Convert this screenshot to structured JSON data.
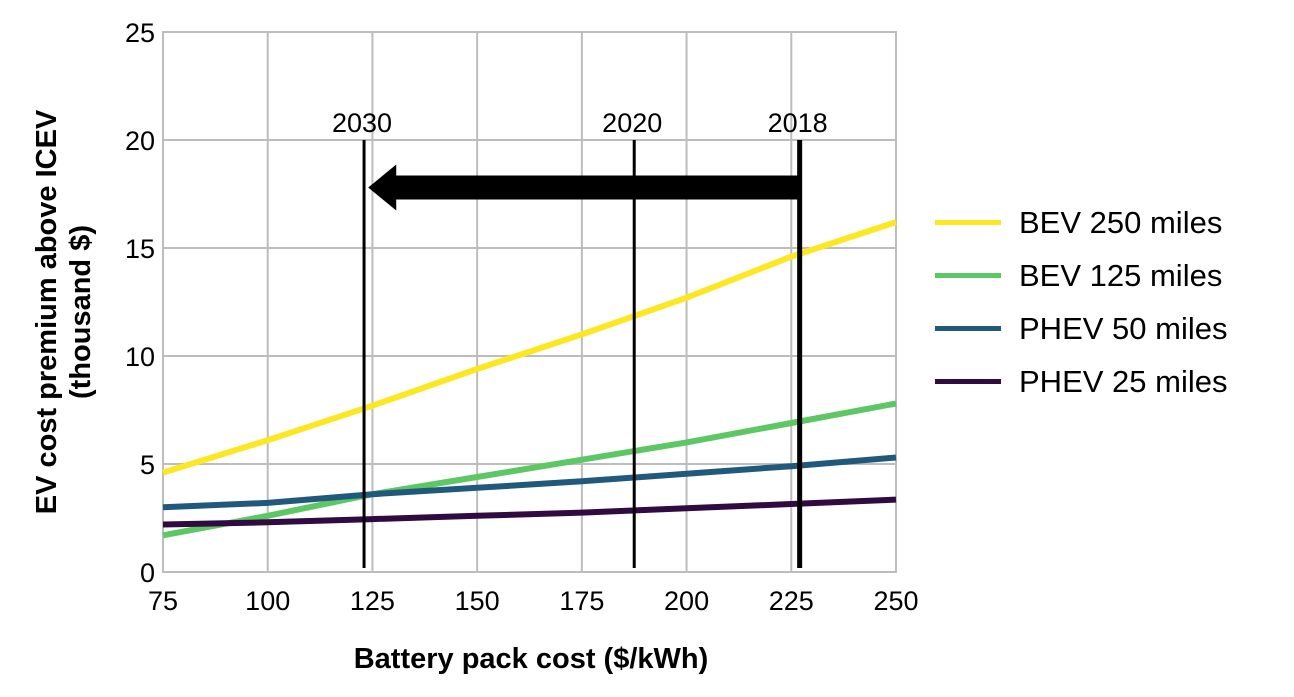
{
  "chart_data": {
    "type": "line",
    "title": "",
    "xlabel": "Battery pack cost ($/kWh)",
    "ylabel_lines": [
      "EV cost premium above ICEV",
      "(thousand $)"
    ],
    "xlim": [
      75,
      250
    ],
    "ylim": [
      0,
      25
    ],
    "xticks": [
      75,
      100,
      125,
      150,
      175,
      200,
      225,
      250
    ],
    "yticks": [
      0,
      5,
      10,
      15,
      20,
      25
    ],
    "grid": true,
    "legend_position": "right",
    "x": [
      75,
      100,
      125,
      150,
      175,
      200,
      225,
      250
    ],
    "series": [
      {
        "name": "BEV 250 miles",
        "color": "#FDE724",
        "values": [
          4.6,
          6.1,
          7.7,
          9.4,
          11.0,
          12.7,
          14.6,
          16.2
        ]
      },
      {
        "name": "BEV 125 miles",
        "color": "#5DC863",
        "values": [
          1.7,
          2.6,
          3.6,
          4.4,
          5.2,
          6.0,
          6.9,
          7.8
        ]
      },
      {
        "name": "PHEV 50 miles",
        "color": "#21597C",
        "values": [
          3.0,
          3.2,
          3.6,
          3.9,
          4.2,
          4.55,
          4.9,
          5.3
        ]
      },
      {
        "name": "PHEV 25 miles",
        "color": "#300A40",
        "values": [
          2.2,
          2.3,
          2.45,
          2.6,
          2.75,
          2.95,
          3.15,
          3.35
        ]
      }
    ],
    "markers": [
      {
        "label": "2030",
        "x": 123,
        "weight": "thin"
      },
      {
        "label": "2020",
        "x": 187.5,
        "weight": "thin"
      },
      {
        "label": "2018",
        "x": 227,
        "weight": "thick"
      }
    ],
    "marker_top_y": 20,
    "arrow": {
      "from_x": 227,
      "to_x": 124,
      "y": 17.8,
      "direction": "left"
    }
  }
}
